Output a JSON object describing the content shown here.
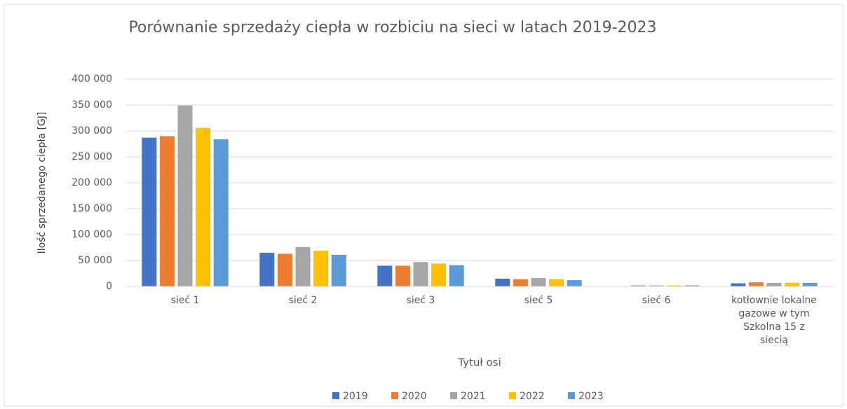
{
  "chart_data": {
    "type": "bar",
    "title": "Porównanie sprzedaży ciepła w rozbiciu na sieci w latach 2019-2023",
    "x_label": "Tytuł osi",
    "y_label": "Ilość sprzedanego ciepła [GJ]",
    "categories": [
      "sieć 1",
      "sieć 2",
      "sieć 3",
      "sieć 5",
      "sieć 6",
      "kotłownie lokalne gazowe w tym Szkolna 15 z siecią"
    ],
    "series": [
      {
        "name": "2019",
        "color": "#4472c4",
        "values": [
          287000,
          65000,
          40000,
          15000,
          0,
          6000
        ]
      },
      {
        "name": "2020",
        "color": "#ed7d31",
        "values": [
          290000,
          63000,
          40000,
          14000,
          2000,
          8000
        ]
      },
      {
        "name": "2021",
        "color": "#a5a5a5",
        "values": [
          349000,
          76000,
          47000,
          16000,
          2000,
          7000
        ]
      },
      {
        "name": "2022",
        "color": "#ffc000",
        "values": [
          306000,
          69000,
          44000,
          14000,
          2000,
          7000
        ]
      },
      {
        "name": "2023",
        "color": "#5b9bd5",
        "values": [
          284000,
          61000,
          41000,
          12000,
          2000,
          7000
        ]
      }
    ],
    "ylim": [
      0,
      400000
    ],
    "yticks": [
      0,
      {
        "value": 50000,
        "label": "50 000"
      },
      {
        "value": 100000,
        "label": "100 000"
      },
      {
        "value": 150000,
        "label": "150 000"
      },
      {
        "value": 200000,
        "label": "200 000"
      },
      {
        "value": 250000,
        "label": "250 000"
      },
      {
        "value": 300000,
        "label": "300 000"
      },
      {
        "value": 350000,
        "label": "350 000"
      },
      {
        "value": 400000,
        "label": "400 000"
      }
    ],
    "grid": true,
    "legend": "bottom"
  }
}
